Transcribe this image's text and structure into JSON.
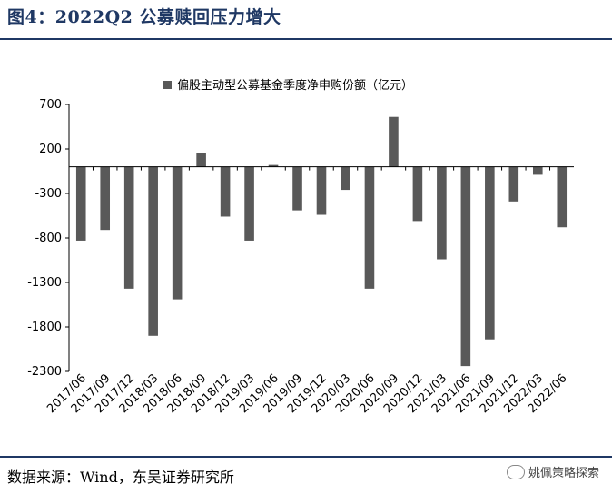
{
  "header": {
    "title": "图4：2022Q2 公募赎回压力增大"
  },
  "footer": {
    "source": "数据来源：Wind，东吴证券研究所",
    "watermark": "姚佩策略探索"
  },
  "chart_data": {
    "type": "bar",
    "legend": "偏股主动型公募基金季度净申购份额（亿元）",
    "ylim": [
      -2300,
      700
    ],
    "yticks": [
      700,
      200,
      -300,
      -800,
      -1300,
      -1800,
      -2300
    ],
    "categories": [
      "2017/06",
      "2017/09",
      "2017/12",
      "2018/03",
      "2018/06",
      "2018/09",
      "2018/12",
      "2019/03",
      "2019/06",
      "2019/09",
      "2019/12",
      "2020/03",
      "2020/06",
      "2020/09",
      "2020/12",
      "2021/03",
      "2021/06",
      "2021/09",
      "2021/12",
      "2022/03",
      "2022/06"
    ],
    "values": [
      -830,
      -710,
      -1370,
      -1900,
      -1490,
      150,
      -560,
      -830,
      20,
      -490,
      -540,
      -260,
      -1370,
      560,
      -610,
      -1040,
      -2240,
      -1940,
      -390,
      -90,
      -680
    ],
    "bar_color": "#595959"
  }
}
